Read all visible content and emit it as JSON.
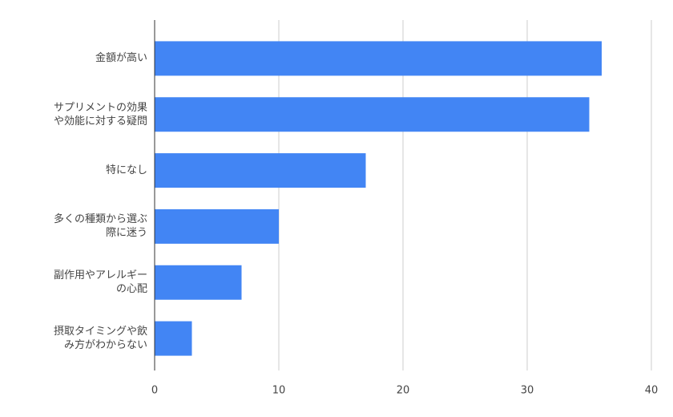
{
  "chart_data": {
    "type": "bar",
    "orientation": "horizontal",
    "categories": [
      "金額が高い",
      "サプリメントの効果\nや効能に対する疑問",
      "特になし",
      "多くの種類から選ぶ\n際に迷う",
      "副作用やアレルギー\nの心配",
      "摂取タイミングや飲\nみ方がわからない"
    ],
    "values": [
      36,
      35,
      17,
      10,
      7,
      3
    ],
    "color": "#4285f4",
    "xlim": [
      0,
      40
    ],
    "xticks": [
      0,
      10,
      20,
      30,
      40
    ],
    "grid": true
  }
}
